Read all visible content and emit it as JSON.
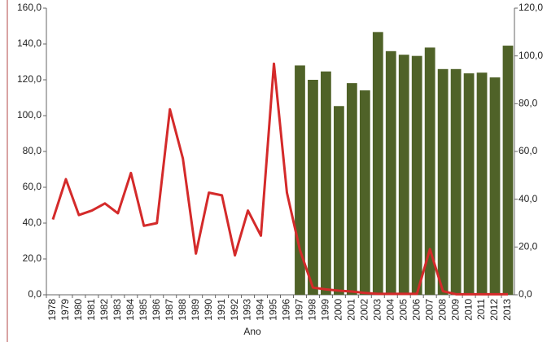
{
  "chart_data": {
    "type": "combo",
    "x_label": "Ano",
    "categories": [
      "1978",
      "1979",
      "1980",
      "1981",
      "1982",
      "1983",
      "1984",
      "1985",
      "1986",
      "1987",
      "1988",
      "1989",
      "1990",
      "1991",
      "1992",
      "1993",
      "1994",
      "1995",
      "1996",
      "1997",
      "1998",
      "1999",
      "2000",
      "2001",
      "2002",
      "2003",
      "2004",
      "2005",
      "2006",
      "2007",
      "2008",
      "2009",
      "2010",
      "2011",
      "2012",
      "2013"
    ],
    "series": [
      {
        "type": "bar",
        "axis": "y2",
        "color": "#4f6228",
        "values": [
          null,
          null,
          null,
          null,
          null,
          null,
          null,
          null,
          null,
          null,
          null,
          null,
          null,
          null,
          null,
          null,
          null,
          null,
          null,
          96,
          90,
          93.5,
          79,
          88.6,
          85.6,
          110,
          102,
          100.5,
          100,
          103.5,
          94.5,
          94.5,
          92.7,
          93,
          91,
          104.3
        ]
      },
      {
        "type": "line",
        "axis": "y",
        "color": "#d42a2a",
        "values": [
          42,
          64.5,
          44.5,
          47,
          51,
          45.5,
          68,
          38.5,
          40,
          103.5,
          76,
          23,
          57,
          55.5,
          22,
          47,
          33,
          129,
          57,
          25,
          4,
          3,
          2.3,
          1.8,
          1,
          0.5,
          0.5,
          0.5,
          0.5,
          25.5,
          2,
          0.3,
          0.3,
          0.3,
          0.3,
          0.3
        ]
      }
    ],
    "ylim": [
      0,
      160
    ],
    "yticks": [
      {
        "value": 0,
        "label": "0,0"
      },
      {
        "value": 20,
        "label": "20,0"
      },
      {
        "value": 40,
        "label": "40,0"
      },
      {
        "value": 60,
        "label": "60,0"
      },
      {
        "value": 80,
        "label": "80,0"
      },
      {
        "value": 100,
        "label": "100,0"
      },
      {
        "value": 120,
        "label": "120,0"
      },
      {
        "value": 140,
        "label": "140,0"
      },
      {
        "value": 160,
        "label": "160,0"
      }
    ],
    "y2lim": [
      0,
      120
    ],
    "y2ticks": [
      {
        "value": 0,
        "label": "0,0"
      },
      {
        "value": 20,
        "label": "20,0"
      },
      {
        "value": 40,
        "label": "40,0"
      },
      {
        "value": 60,
        "label": "60,0"
      },
      {
        "value": 80,
        "label": "80,0"
      },
      {
        "value": 100,
        "label": "100,0"
      },
      {
        "value": 120,
        "label": "120,0"
      }
    ]
  }
}
